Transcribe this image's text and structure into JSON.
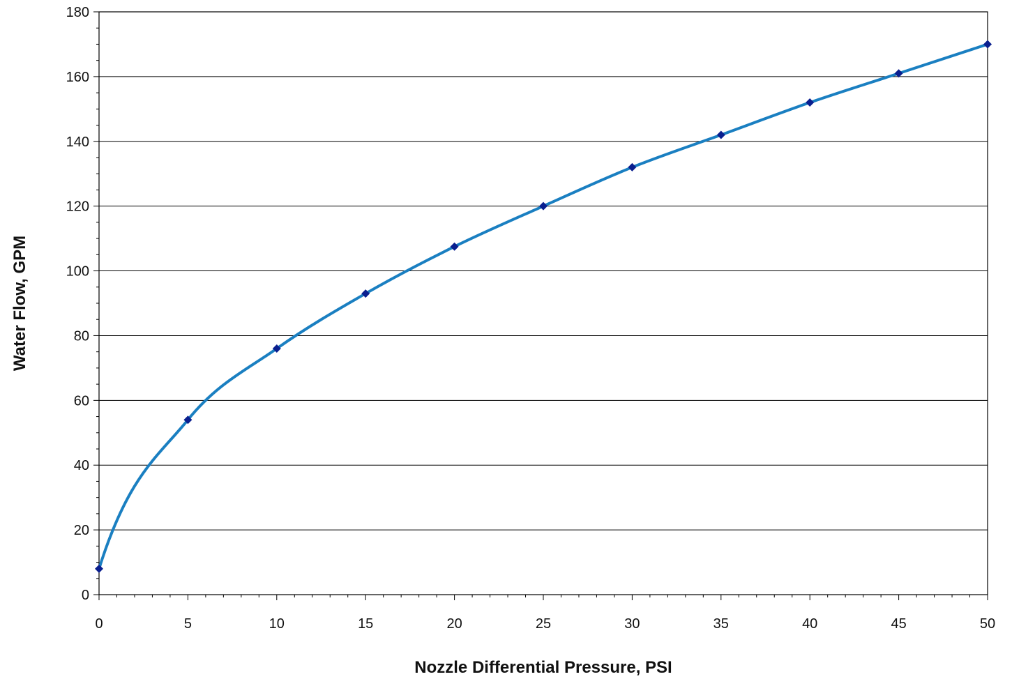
{
  "chart_data": {
    "type": "line",
    "title": "",
    "xlabel": "Nozzle Differential Pressure, PSI",
    "ylabel": "Water Flow, GPM",
    "xlim": [
      0,
      50
    ],
    "ylim": [
      0,
      180
    ],
    "x_ticks": [
      0,
      5,
      10,
      15,
      20,
      25,
      30,
      35,
      40,
      45,
      50
    ],
    "y_ticks": [
      0,
      20,
      40,
      60,
      80,
      100,
      120,
      140,
      160,
      180
    ],
    "x_minor_step": 1,
    "y_minor_step": 5,
    "grid": "horizontal major",
    "legend": "none",
    "series": [
      {
        "points": [
          {
            "x": 0,
            "y": 8
          },
          {
            "x": 5,
            "y": 54
          },
          {
            "x": 10,
            "y": 76
          },
          {
            "x": 15,
            "y": 93
          },
          {
            "x": 20,
            "y": 107.5
          },
          {
            "x": 25,
            "y": 120
          },
          {
            "x": 30,
            "y": 132
          },
          {
            "x": 35,
            "y": 142
          },
          {
            "x": 40,
            "y": 152
          },
          {
            "x": 45,
            "y": 161
          },
          {
            "x": 50,
            "y": 170
          }
        ],
        "line_color": "#1a7fc1",
        "marker_color": "#0a1f8f",
        "marker": "diamond"
      }
    ],
    "colors": {
      "axis": "#000000",
      "grid": "#000000"
    }
  }
}
